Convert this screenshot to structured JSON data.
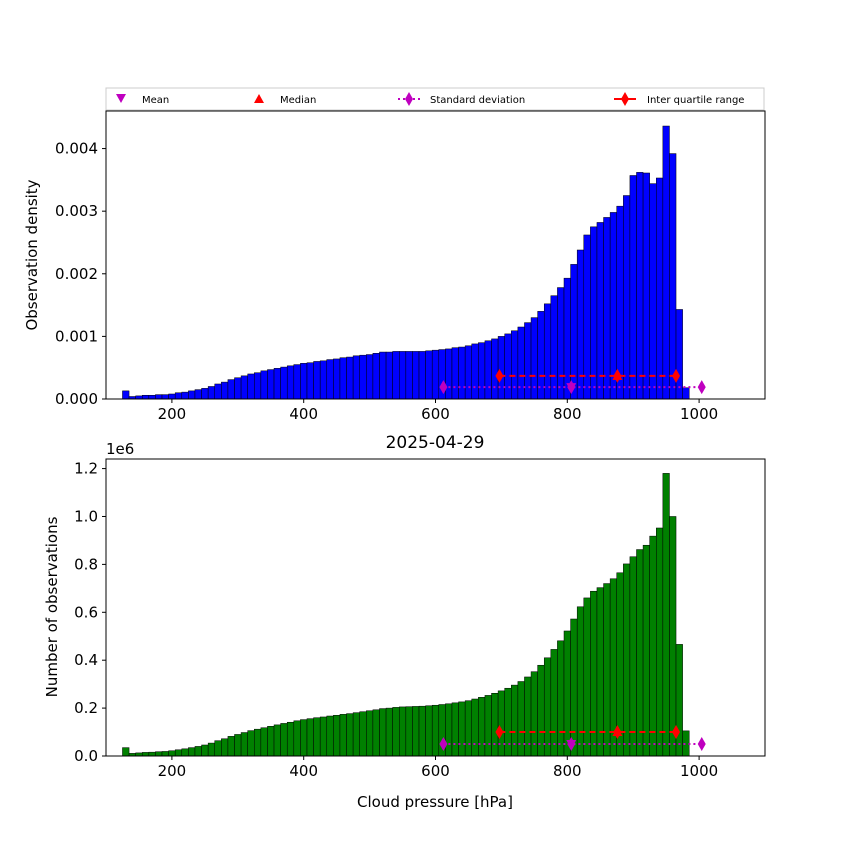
{
  "legend": {
    "placement": "top",
    "entries": [
      "Mean",
      "Median",
      "Standard deviation",
      "Inter quartile range"
    ]
  },
  "chart_data": [
    {
      "type": "bar",
      "subplot": "top",
      "title": "",
      "xlabel": "",
      "ylabel": "Observation density",
      "xlim": [
        100,
        1100
      ],
      "ylim": [
        0,
        0.0046
      ],
      "xticks": [
        200,
        400,
        600,
        800,
        1000
      ],
      "yticks": [
        0.0,
        0.001,
        0.002,
        0.003,
        0.004
      ],
      "ytick_labels": [
        "0.000",
        "0.001",
        "0.002",
        "0.003",
        "0.004"
      ],
      "bar_color": "#0000ff",
      "bin_start": 125,
      "bin_width": 10,
      "values": [
        0.00013,
        4e-05,
        5e-05,
        6e-05,
        6e-05,
        7e-05,
        7e-05,
        8e-05,
        0.0001,
        0.00011,
        0.00013,
        0.00015,
        0.00017,
        0.0002,
        0.00024,
        0.00027,
        0.00031,
        0.00034,
        0.00037,
        0.0004,
        0.00042,
        0.00045,
        0.00047,
        0.00049,
        0.00051,
        0.00053,
        0.00055,
        0.00057,
        0.00058,
        0.0006,
        0.00061,
        0.00063,
        0.00064,
        0.00066,
        0.00067,
        0.00069,
        0.0007,
        0.00071,
        0.00073,
        0.00075,
        0.00075,
        0.00076,
        0.00076,
        0.00076,
        0.00076,
        0.00076,
        0.00077,
        0.00078,
        0.00079,
        0.0008,
        0.00082,
        0.00083,
        0.00085,
        0.00088,
        0.0009,
        0.00093,
        0.00096,
        0.001,
        0.00104,
        0.00109,
        0.00115,
        0.00122,
        0.0013,
        0.0014,
        0.00152,
        0.00165,
        0.00178,
        0.00193,
        0.00215,
        0.00238,
        0.00262,
        0.00275,
        0.00282,
        0.0029,
        0.00298,
        0.00308,
        0.00325,
        0.00357,
        0.00362,
        0.00361,
        0.00344,
        0.00353,
        0.00436,
        0.00392,
        0.00143,
        0.00018
      ],
      "markers": {
        "y": 0.00037,
        "y_std": 0.00019,
        "mean": 806,
        "median": 876,
        "iqr": [
          697,
          965
        ],
        "std_range": [
          612,
          1004
        ]
      }
    },
    {
      "type": "bar",
      "subplot": "bottom",
      "title": "2025-04-29",
      "xlabel": "Cloud pressure [hPa]",
      "ylabel": "Number of observations",
      "offset_label": "1e6",
      "xlim": [
        100,
        1100
      ],
      "ylim": [
        0,
        1240000
      ],
      "xticks": [
        200,
        400,
        600,
        800,
        1000
      ],
      "yticks": [
        0,
        200000,
        400000,
        600000,
        800000,
        1000000,
        1200000
      ],
      "ytick_labels": [
        "0.0",
        "0.2",
        "0.4",
        "0.6",
        "0.8",
        "1.0",
        "1.2"
      ],
      "bar_color": "#008000",
      "bin_start": 125,
      "bin_width": 10,
      "values": [
        35000,
        11000,
        13000,
        15000,
        16000,
        18000,
        19000,
        22000,
        26000,
        30000,
        35000,
        40000,
        46000,
        54000,
        64000,
        72000,
        82000,
        90000,
        98000,
        106000,
        112000,
        118000,
        124000,
        130000,
        136000,
        141000,
        147000,
        152000,
        156000,
        160000,
        163000,
        167000,
        170000,
        174000,
        177000,
        181000,
        185000,
        189000,
        193000,
        198000,
        200000,
        203000,
        205000,
        206000,
        207000,
        208000,
        210000,
        212000,
        215000,
        218000,
        222000,
        226000,
        231000,
        238000,
        245000,
        253000,
        262000,
        272000,
        283000,
        296000,
        311000,
        330000,
        352000,
        379000,
        410000,
        445000,
        481000,
        522000,
        572000,
        623000,
        660000,
        688000,
        703000,
        720000,
        740000,
        765000,
        802000,
        832000,
        862000,
        880000,
        918000,
        952000,
        1180000,
        1000000,
        466000,
        105000
      ],
      "markers": {
        "y": 100000,
        "y_std": 50000,
        "mean": 806,
        "median": 876,
        "iqr": [
          697,
          965
        ],
        "std_range": [
          612,
          1004
        ]
      }
    }
  ]
}
